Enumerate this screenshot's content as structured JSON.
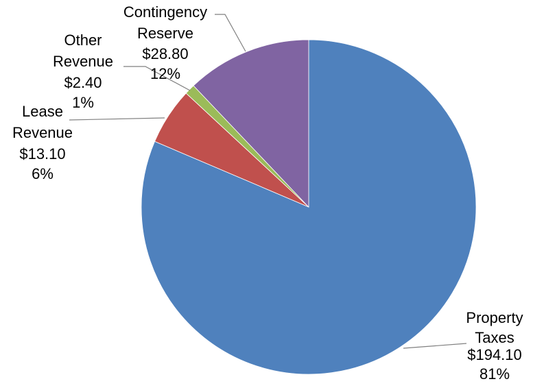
{
  "chart_data": {
    "type": "pie",
    "title": "",
    "slices": [
      {
        "name": "Property Taxes",
        "value": 194.1,
        "value_label": "$194.10",
        "percent_label": "81%",
        "color": "#4F81BD"
      },
      {
        "name": "Lease Revenue",
        "value": 13.1,
        "value_label": "$13.10",
        "percent_label": "6%",
        "color": "#C0504D"
      },
      {
        "name": "Other Revenue",
        "value": 2.4,
        "value_label": "$2.40",
        "percent_label": "1%",
        "color": "#9BBB59"
      },
      {
        "name": "Contingency Reserve",
        "value": 28.8,
        "value_label": "$28.80",
        "percent_label": "12%",
        "color": "#8064A2"
      }
    ],
    "start_angle": "12 o'clock",
    "direction": "clockwise",
    "legend": "none",
    "data_labels": "outside with leader lines"
  }
}
